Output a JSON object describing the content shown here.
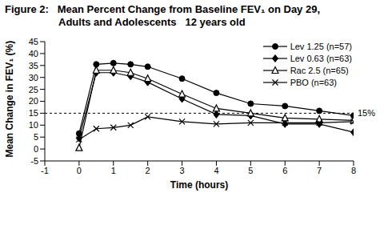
{
  "chart_data": {
    "type": "line",
    "title": "Figure 2:   Mean Percent Change from Baseline FEV₁ on Day 29,\nAdults and Adolescents   12 years old",
    "x_label": "Time (hours)",
    "y_label": "Mean Change in FEV₁ (%)",
    "x": [
      0,
      0.5,
      1,
      1.5,
      2,
      3,
      4,
      5,
      6,
      7,
      8
    ],
    "series": [
      {
        "name": "Lev 1.25 (n=57)",
        "color": "#000000",
        "marker": "circle",
        "values": [
          6.5,
          35.5,
          36,
          35.5,
          34.5,
          29.5,
          23.5,
          19,
          18,
          16,
          14
        ]
      },
      {
        "name": "Lev 0.63 (n=63)",
        "color": "#000000",
        "marker": "diamond",
        "values": [
          4.5,
          32,
          32,
          30.5,
          28,
          21,
          14.5,
          14,
          10.5,
          10.5,
          7
        ]
      },
      {
        "name": "Rac 2.5 (n=65)",
        "color": "#000000",
        "marker": "triangle",
        "values": [
          0.5,
          33,
          33,
          32,
          29.5,
          23,
          17,
          15,
          13,
          12.5,
          12
        ]
      },
      {
        "name": "PBO (n=63)",
        "color": "#000000",
        "marker": "x",
        "values": [
          4,
          8.5,
          9,
          10,
          13.5,
          11.5,
          10.5,
          11,
          11,
          11,
          11.5
        ]
      }
    ],
    "xlim": [
      -1,
      8
    ],
    "xticks": [
      -1,
      0,
      1,
      2,
      3,
      4,
      5,
      6,
      7,
      8
    ],
    "ylim": [
      -5,
      45
    ],
    "yticks": [
      -5,
      0,
      5,
      10,
      15,
      20,
      25,
      30,
      35,
      40,
      45
    ],
    "reference_line": {
      "value": 15,
      "label": "15%",
      "line_style": "dashed"
    },
    "legend": "upper right",
    "grid": false
  }
}
